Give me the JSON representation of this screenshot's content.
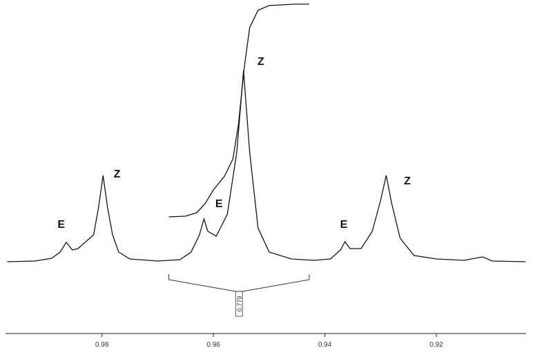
{
  "chart_data": {
    "type": "line",
    "xlim": [
      0.9973,
      0.9039
    ],
    "ylim": [
      -130,
      375
    ],
    "xticks": [
      0.98,
      0.96,
      0.94,
      0.92
    ],
    "series": [
      {
        "color": "#111111",
        "x": [
          0.997,
          0.992,
          0.989,
          0.9875,
          0.9864,
          0.9853,
          0.9843,
          0.9815,
          0.9806,
          0.9798,
          0.979,
          0.9781,
          0.977,
          0.975,
          0.97,
          0.966,
          0.964,
          0.9625,
          0.9617,
          0.961,
          0.9595,
          0.9575,
          0.9558,
          0.9546,
          0.9535,
          0.952,
          0.95,
          0.946,
          0.942,
          0.939,
          0.9372,
          0.9364,
          0.9355,
          0.9335,
          0.9315,
          0.93,
          0.929,
          0.928,
          0.9265,
          0.924,
          0.92,
          0.915,
          0.9117,
          0.91,
          0.904
        ],
        "values": [
          1,
          2,
          6,
          15,
          29,
          18,
          20,
          40,
          80,
          126,
          80,
          40,
          15,
          5,
          2,
          4,
          15,
          40,
          63,
          45,
          38,
          70,
          160,
          278,
          160,
          50,
          15,
          5,
          3,
          5,
          18,
          30,
          20,
          20,
          45,
          90,
          126,
          85,
          35,
          10,
          5,
          3,
          8,
          2,
          1
        ]
      },
      {
        "color": "#111111",
        "x": [
          0.968,
          0.965,
          0.963,
          0.9615,
          0.96,
          0.958,
          0.9565,
          0.9555,
          0.9545,
          0.9535,
          0.952,
          0.95,
          0.9455,
          0.9428
        ],
        "values": [
          66,
          67,
          72,
          85,
          105,
          125,
          150,
          200,
          280,
          340,
          365,
          372,
          374,
          374
        ]
      }
    ],
    "integral": {
      "value": 0.779,
      "from": 0.968,
      "to": 0.9428
    },
    "annotations": [
      {
        "text": "E",
        "x": 0.9873,
        "y": 50
      },
      {
        "text": "Z",
        "x": 0.9773,
        "y": 123
      },
      {
        "text": "E",
        "x": 0.959,
        "y": 80
      },
      {
        "text": "Z",
        "x": 0.9515,
        "y": 286
      },
      {
        "text": "E",
        "x": 0.9366,
        "y": 50
      },
      {
        "text": "Z",
        "x": 0.9252,
        "y": 113
      }
    ]
  }
}
